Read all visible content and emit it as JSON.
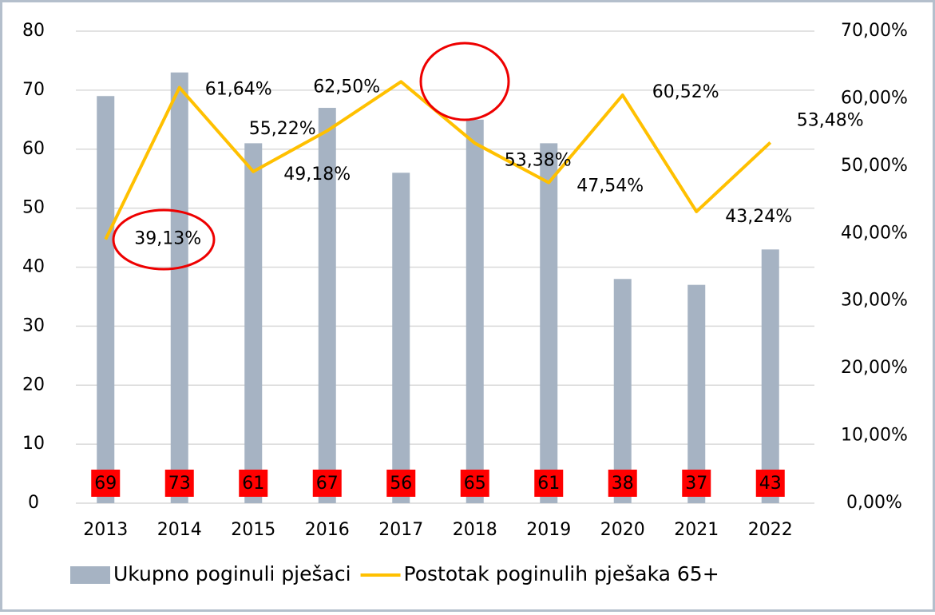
{
  "chart_data": {
    "type": "bar-line",
    "categories": [
      "2013",
      "2014",
      "2015",
      "2016",
      "2017",
      "2018",
      "2019",
      "2020",
      "2021",
      "2022"
    ],
    "series": [
      {
        "name": "Ukupno poginuli pješaci",
        "type": "bar",
        "color": "#a6b3c3",
        "values": [
          69,
          73,
          61,
          67,
          56,
          65,
          61,
          38,
          37,
          43
        ]
      },
      {
        "name": "Postotak poginulih pješaka 65+",
        "type": "line",
        "axis": "y2",
        "color": "#ffc000",
        "values": [
          39.13,
          61.64,
          49.18,
          55.22,
          62.5,
          53.38,
          47.54,
          60.52,
          43.24,
          53.48
        ],
        "value_labels": [
          "39,13%",
          "61,64%",
          "49,18%",
          "55,22%",
          "62,50%",
          "53,38%",
          "47,54%",
          "60,52%",
          "43,24%",
          "53,48%"
        ]
      }
    ],
    "ylim": [
      0,
      80
    ],
    "yticks": [
      0,
      10,
      20,
      30,
      40,
      50,
      60,
      70,
      80
    ],
    "y2lim": [
      0,
      70
    ],
    "y2ticks": [
      {
        "value": 0,
        "label": "0,00%"
      },
      {
        "value": 10,
        "label": "10,00%"
      },
      {
        "value": 20,
        "label": "20,00%"
      },
      {
        "value": 30,
        "label": "30,00%"
      },
      {
        "value": 40,
        "label": "40,00%"
      },
      {
        "value": 50,
        "label": "50,00%"
      },
      {
        "value": 60,
        "label": "60,00%"
      },
      {
        "value": 70,
        "label": "70,00%"
      }
    ],
    "grid": true,
    "legend": "bottom"
  }
}
